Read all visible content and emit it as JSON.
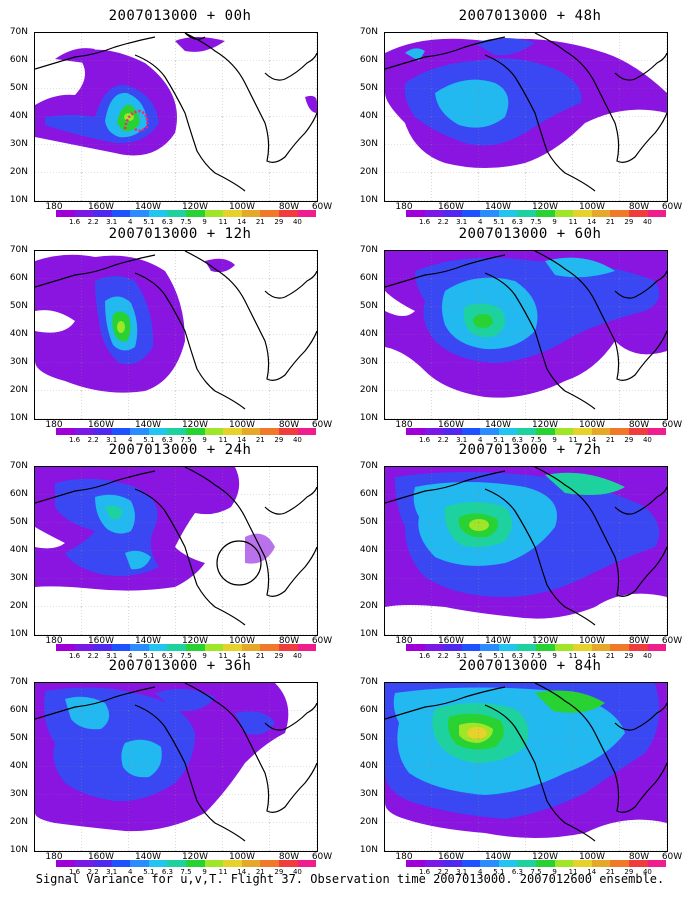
{
  "caption": "Signal Variance for u,v,T. Flight 37. Observation time 2007013000. 2007012600 ensemble.",
  "lat_labels": [
    "70N",
    "60N",
    "50N",
    "40N",
    "30N",
    "20N",
    "10N"
  ],
  "lon_labels": [
    "180",
    "160W",
    "140W",
    "120W",
    "100W",
    "80W",
    "60W"
  ],
  "colorbar_labels": [
    "1.6",
    "2.2",
    "3.1",
    "4",
    "5.1",
    "6.3",
    "7.5",
    "9",
    "11",
    "14",
    "21",
    "29",
    "40"
  ],
  "colorbar_colors": [
    "#a000d8",
    "#7a18e8",
    "#5028f0",
    "#1e52ff",
    "#2a8cff",
    "#22c4f0",
    "#1ed2a0",
    "#28d232",
    "#a0e628",
    "#e6d22a",
    "#e6a828",
    "#f07828",
    "#f03c3c",
    "#f01e8c"
  ],
  "panels": [
    {
      "title": "2007013000 + 00h",
      "peak_level": "9"
    },
    {
      "title": "2007013000 + 48h",
      "peak_level": "6.3"
    },
    {
      "title": "2007013000 + 12h",
      "peak_level": "11"
    },
    {
      "title": "2007013000 + 60h",
      "peak_level": "9"
    },
    {
      "title": "2007013000 + 24h",
      "peak_level": "7.5"
    },
    {
      "title": "2007013000 + 72h",
      "peak_level": "11"
    },
    {
      "title": "2007013000 + 36h",
      "peak_level": "6.3"
    },
    {
      "title": "2007013000 + 84h",
      "peak_level": "14"
    }
  ]
}
